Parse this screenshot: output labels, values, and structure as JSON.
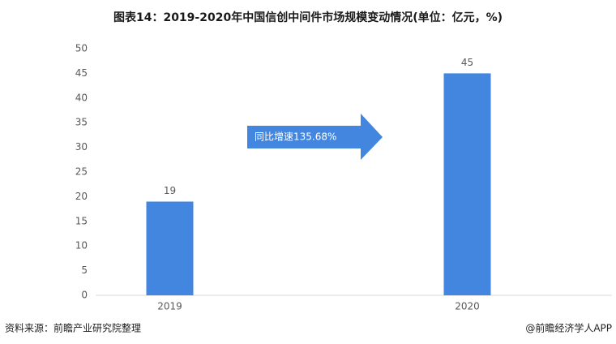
{
  "chart_data": {
    "type": "bar",
    "title": "图表14：2019-2020年中国信创中间件市场规模变动情况(单位：亿元，%)",
    "categories": [
      "2019",
      "2020"
    ],
    "values": [
      19,
      45
    ],
    "color": "#4286e0",
    "ylim": [
      0,
      50
    ],
    "yticks": [
      0,
      5,
      10,
      15,
      20,
      25,
      30,
      35,
      40,
      45,
      50
    ],
    "grid": false,
    "annotation": "同比增速135.68%",
    "source": "资料来源：前瞻产业研究院整理",
    "credit": "@前瞻经济学人APP"
  }
}
